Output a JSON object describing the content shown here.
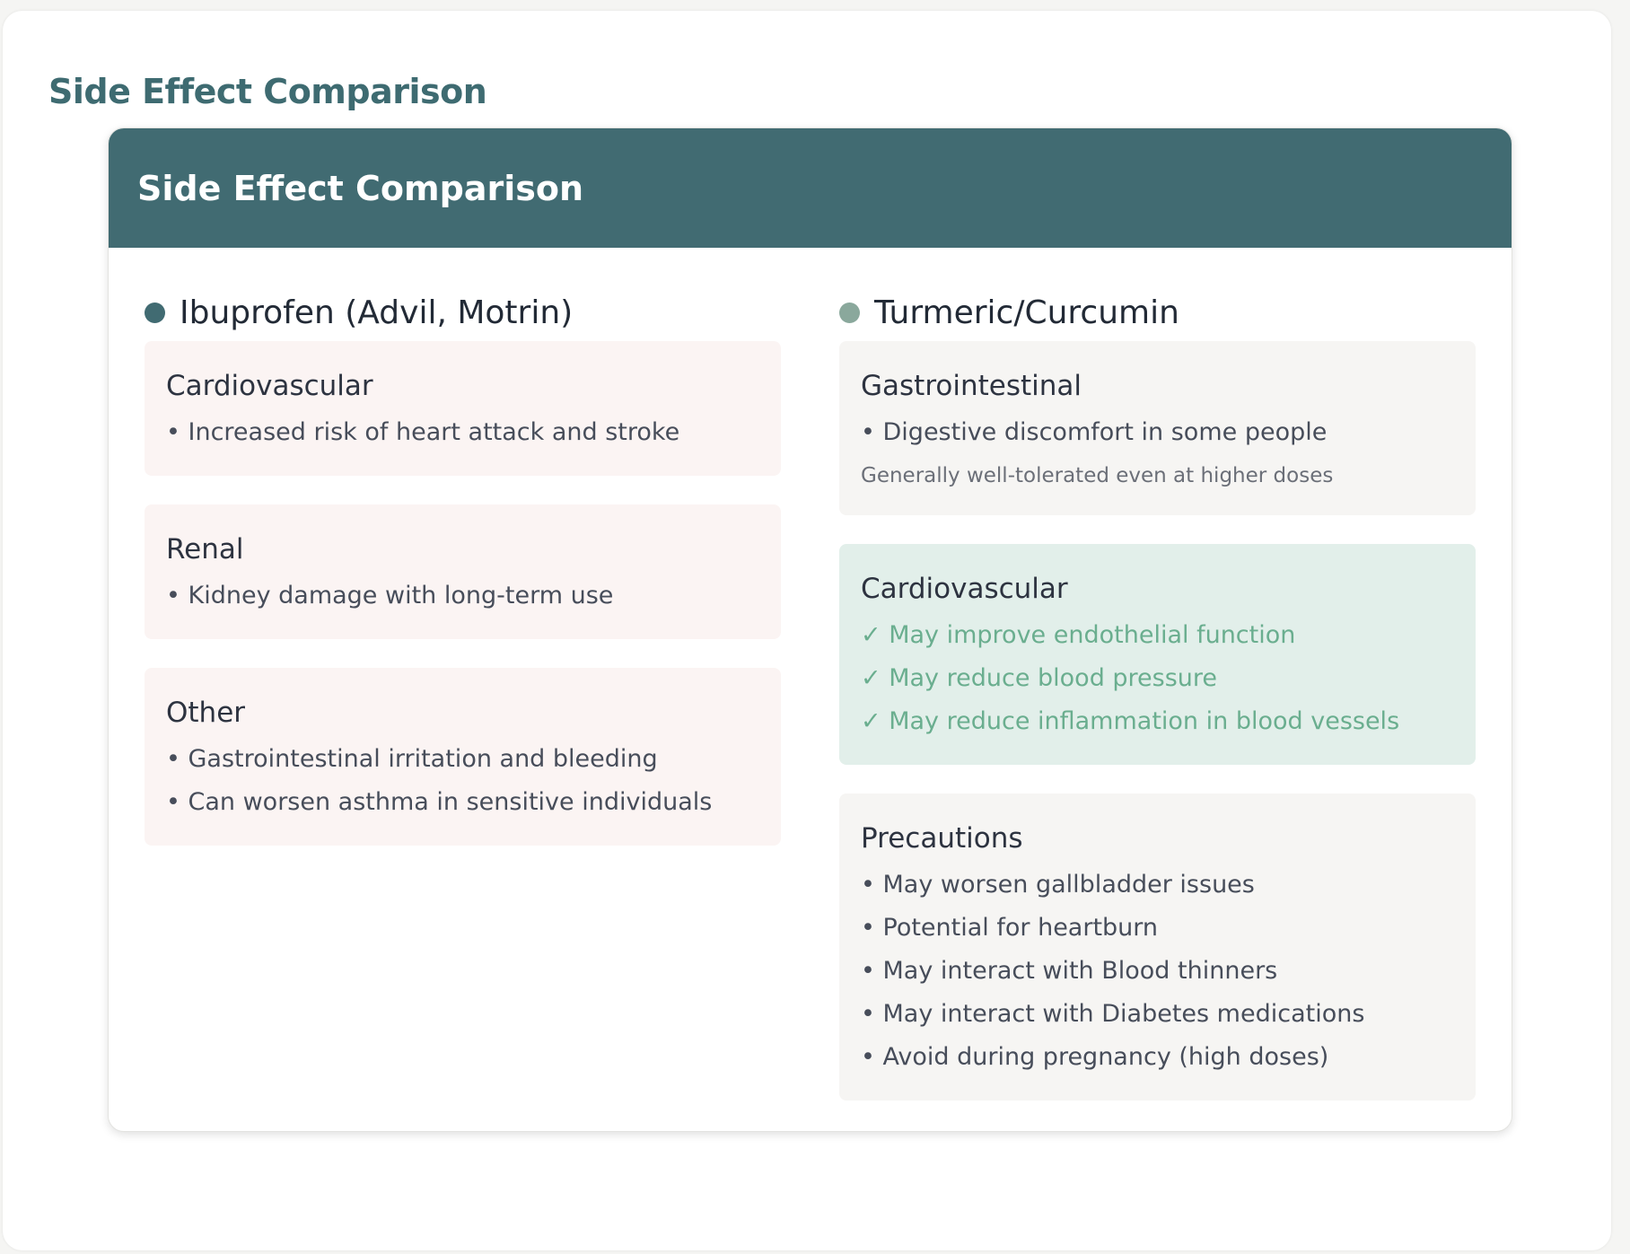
{
  "page_title": "Side Effect Comparison",
  "card": {
    "title": "Side Effect Comparison",
    "colors": {
      "header": "#416b72",
      "ibuprofen_dot": "#416b72",
      "turmeric_dot": "#8aa89c",
      "positive": "#6aae8f"
    },
    "columns": [
      {
        "drug": "Ibuprofen (Advil, Motrin)",
        "sections": [
          {
            "title": "Cardiovascular",
            "items": [
              "• Increased risk of heart attack and stroke"
            ]
          },
          {
            "title": "Renal",
            "items": [
              "• Kidney damage with long-term use"
            ]
          },
          {
            "title": "Other",
            "items": [
              "• Gastrointestinal irritation and bleeding",
              "• Can worsen asthma in sensitive individuals"
            ]
          }
        ]
      },
      {
        "drug": "Turmeric/Curcumin",
        "sections": [
          {
            "title": "Gastrointestinal",
            "items": [
              "• Digestive discomfort in some people"
            ],
            "note": "Generally well-tolerated even at higher doses"
          },
          {
            "title": "Cardiovascular",
            "items": [
              "✓ May improve endothelial function",
              "✓ May reduce blood pressure",
              "✓ May reduce inflammation in blood vessels"
            ]
          },
          {
            "title": "Precautions",
            "items": [
              "• May worsen gallbladder issues",
              "• Potential for heartburn",
              "• May interact with Blood thinners",
              "• May interact with Diabetes medications",
              "• Avoid during pregnancy (high doses)"
            ]
          }
        ]
      }
    ]
  }
}
